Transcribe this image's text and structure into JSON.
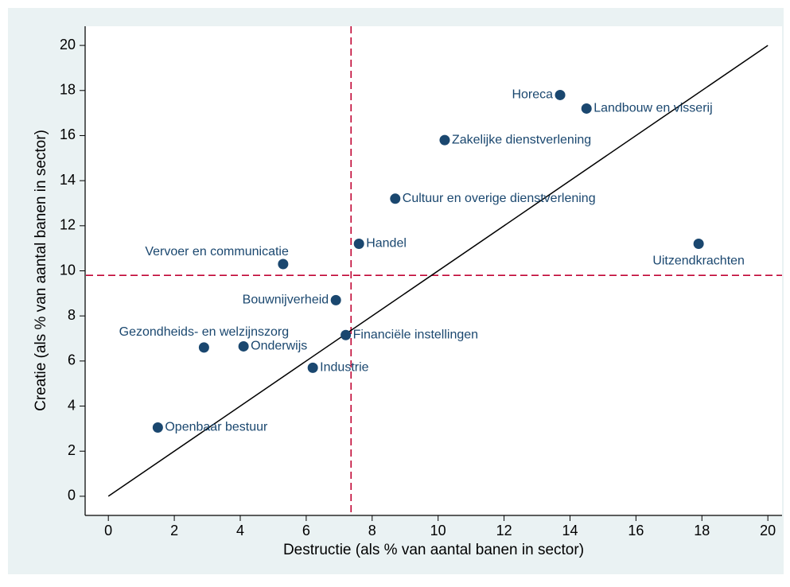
{
  "chart_data": {
    "type": "scatter",
    "xlabel": "Destructie (als % van aantal banen in sector)",
    "ylabel": "Creatie (als % van aantal banen in sector)",
    "labels": [
      "Horeca",
      "Landbouw en visserij",
      "Zakelijke dienstverlening",
      "Cultuur en overige dienstverlening",
      "Handel",
      "Uitzendkrachten",
      "Vervoer en communicatie",
      "Bouwnijverheid",
      "Financiële instellingen",
      "Gezondheids- en welzijnszorg",
      "Onderwijs",
      "Industrie",
      "Openbaar bestuur"
    ],
    "x": [
      13.7,
      14.5,
      10.2,
      8.7,
      7.6,
      17.9,
      5.3,
      6.9,
      7.2,
      2.9,
      4.1,
      6.2,
      1.5
    ],
    "values": [
      17.8,
      17.2,
      15.8,
      13.2,
      11.2,
      11.2,
      10.3,
      8.7,
      7.15,
      6.6,
      6.65,
      5.7,
      3.05
    ],
    "color": "#1a476f",
    "reference_x": 7.36,
    "reference_y": 9.8,
    "reference_color": "#c10534",
    "diagonal": [
      0,
      20
    ],
    "xlim": [
      -0.68,
      20.43
    ],
    "ylim": [
      -0.85,
      20.85
    ],
    "xticks": [
      0,
      2,
      4,
      6,
      8,
      10,
      12,
      14,
      16,
      18,
      20
    ],
    "yticks": [
      0,
      2,
      4,
      6,
      8,
      10,
      12,
      14,
      16,
      18,
      20
    ],
    "grid": false
  }
}
